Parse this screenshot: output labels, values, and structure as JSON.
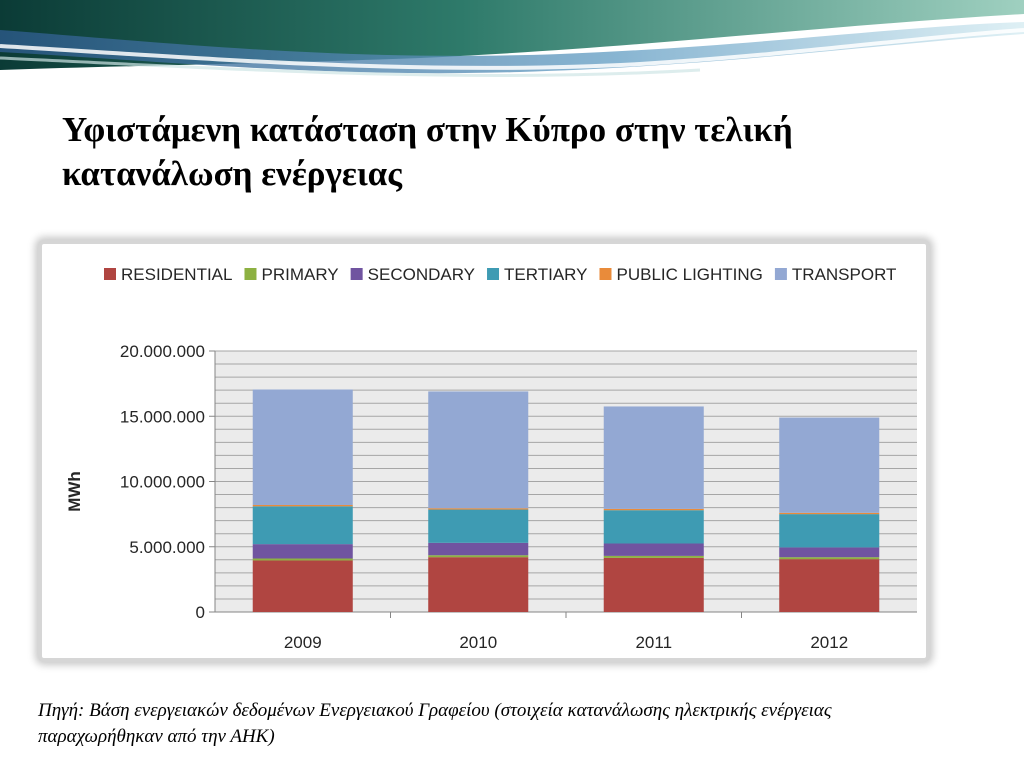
{
  "slide": {
    "title": "Υφιστάμενη κατάσταση στην Κύπρο στην τελική κατανάλωση ενέργειας",
    "source_note": "Πηγή: Βάση ενεργειακών δεδομένων Ενεργειακού Γραφείου (στοιχεία κατανάλωσης ηλεκτρικής ενέργειας παραχωρήθηκαν από την ΑΗΚ)"
  },
  "chart_data": {
    "type": "bar",
    "stacked": true,
    "categories": [
      "2009",
      "2010",
      "2011",
      "2012"
    ],
    "series": [
      {
        "name": "RESIDENTIAL",
        "color": "#b04541",
        "values": [
          3950000,
          4200000,
          4150000,
          4050000
        ]
      },
      {
        "name": "PRIMARY",
        "color": "#8db142",
        "values": [
          150000,
          150000,
          150000,
          150000
        ]
      },
      {
        "name": "SECONDARY",
        "color": "#7054a0",
        "values": [
          1100000,
          950000,
          950000,
          750000
        ]
      },
      {
        "name": "TERTIARY",
        "color": "#3e9bb3",
        "values": [
          2900000,
          2550000,
          2550000,
          2550000
        ]
      },
      {
        "name": "PUBLIC LIGHTING",
        "color": "#e98b3a",
        "values": [
          100000,
          100000,
          100000,
          100000
        ]
      },
      {
        "name": "TRANSPORT",
        "color": "#93a8d3",
        "values": [
          8850000,
          8950000,
          7850000,
          7300000
        ]
      }
    ],
    "ylabel": "MWh",
    "xlabel": "",
    "ylim": [
      0,
      20000000
    ],
    "y_ticks": [
      {
        "value": 0,
        "label": "0"
      },
      {
        "value": 5000000,
        "label": "5.000.000"
      },
      {
        "value": 10000000,
        "label": "10.000.000"
      },
      {
        "value": 15000000,
        "label": "15.000.000"
      },
      {
        "value": 20000000,
        "label": "20.000.000"
      }
    ],
    "grid": true,
    "minor_grid_step": 1000000,
    "legend_position": "top",
    "colors": {
      "plot_background": "#ebebeb",
      "gridline": "#a6a6a6"
    }
  }
}
